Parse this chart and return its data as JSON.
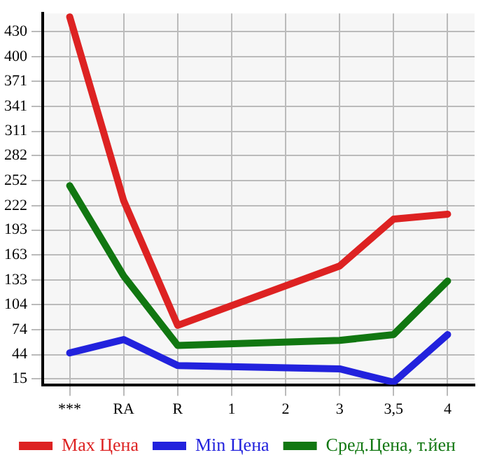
{
  "chart_data": {
    "type": "line",
    "categories": [
      "***",
      "RA",
      "R",
      "1",
      "2",
      "3",
      "3,5",
      "4"
    ],
    "series": [
      {
        "name": "Max Цена",
        "color": "#dd2222",
        "values": [
          448,
          228,
          79,
          null,
          null,
          150,
          206,
          212
        ]
      },
      {
        "name": "Min Цена",
        "color": "#2222dd",
        "values": [
          46,
          62,
          31,
          null,
          null,
          27,
          11,
          68
        ]
      },
      {
        "name": "Сред.Цена, т.йен",
        "color": "#117711",
        "values": [
          246,
          138,
          55,
          null,
          null,
          61,
          68,
          132
        ]
      }
    ],
    "ylim": [
      8,
      452
    ],
    "yticks": [
      15,
      44,
      74,
      104,
      133,
      163,
      193,
      222,
      252,
      282,
      311,
      341,
      371,
      400,
      430
    ],
    "grid": true,
    "legend": "bottom",
    "marker": "none",
    "line_style": "solid"
  }
}
